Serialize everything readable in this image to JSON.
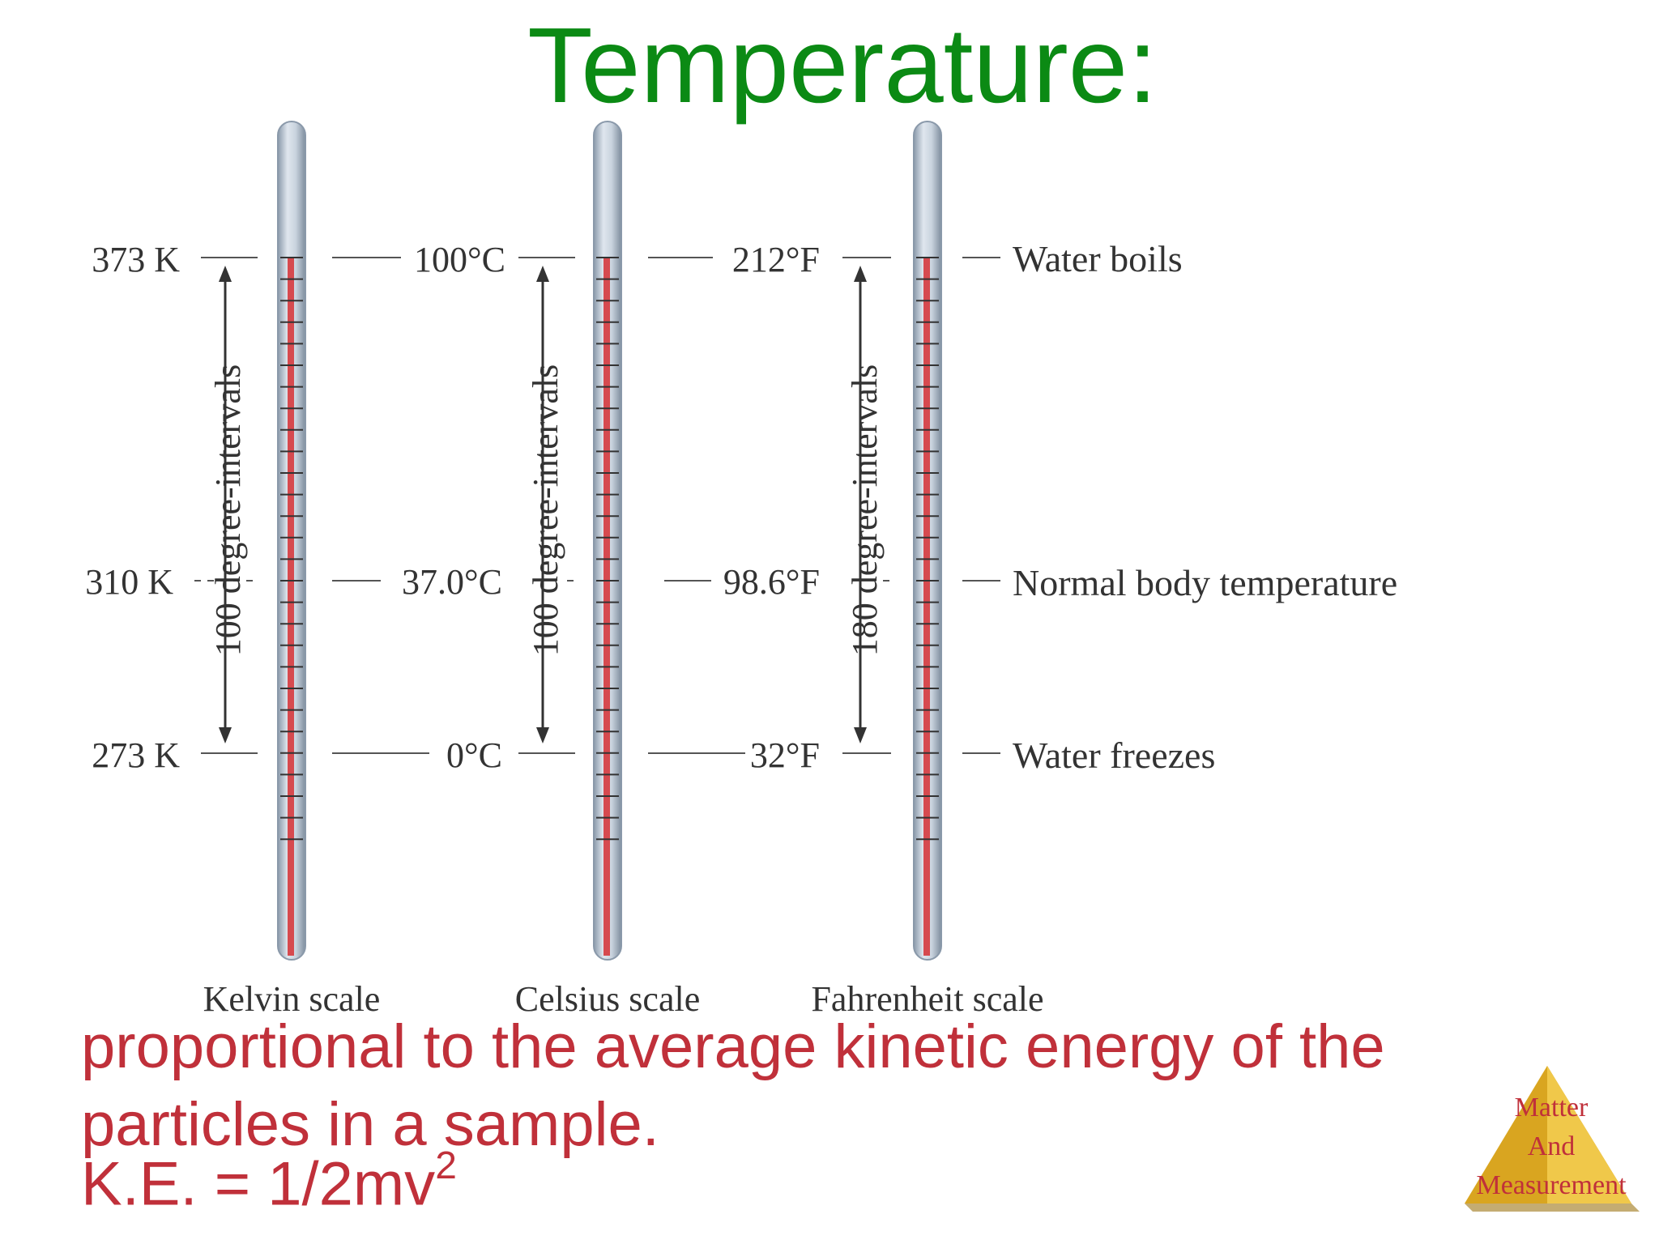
{
  "title": "Temperature:",
  "thermometers": [
    {
      "scale": "Kelvin scale",
      "boiling": "373 K",
      "body": "310 K",
      "freezing": "273 K",
      "interval": "100 degree-intervals"
    },
    {
      "scale": "Celsius scale",
      "boiling": "100°C",
      "body": "37.0°C",
      "freezing": "0°C",
      "interval": "100 degree-intervals"
    },
    {
      "scale": "Fahrenheit scale",
      "boiling": "212°F",
      "body": "98.6°F",
      "freezing": "32°F",
      "interval": "180 degree-intervals"
    }
  ],
  "reference_points": {
    "boiling": "Water boils",
    "body": "Normal body temperature",
    "freezing": "Water freezes"
  },
  "body_text": "proportional to the average kinetic energy of the particles in a sample.",
  "formula": {
    "lhs": "K.E. = 1/2mv",
    "exponent": "2"
  },
  "logo": {
    "line1": "Matter",
    "line2": "And",
    "line3": "Measurement"
  },
  "colors": {
    "title": "#0b8a14",
    "text": "#c0303a",
    "mercury": "#d64a4f",
    "tube": "#b8c6d6",
    "logo": "#e2b327"
  }
}
